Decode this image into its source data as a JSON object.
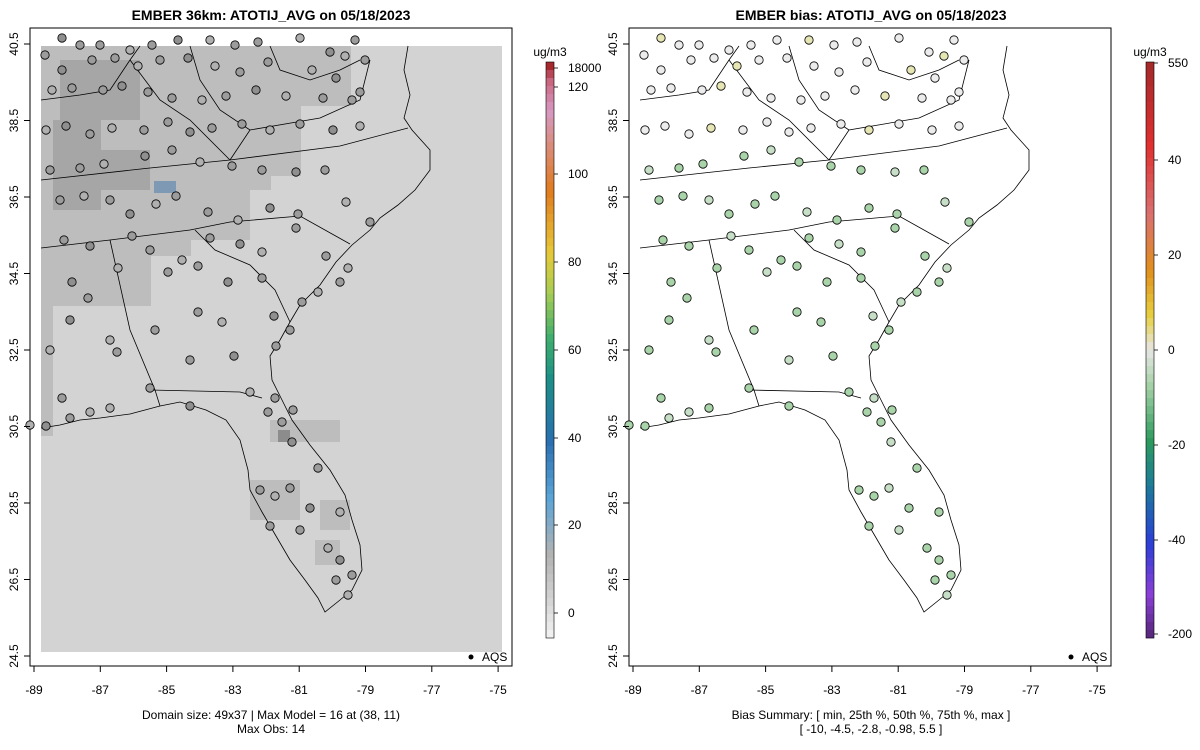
{
  "left_panel": {
    "title": "EMBER 36km: ATOTIJ_AVG on 05/18/2023",
    "legend_unit": "ug/m3",
    "legend_ticks": [
      "18000",
      "120",
      "100",
      "80",
      "60",
      "40",
      "20",
      "0"
    ],
    "footer_line1": "Domain size: 49x37 | Max Model = 16 at (38, 11)",
    "footer_line2": "Max Obs: 14",
    "points_label": "AQS"
  },
  "right_panel": {
    "title": "EMBER bias: ATOTIJ_AVG on 05/18/2023",
    "legend_unit": "ug/m3",
    "legend_ticks": [
      "550",
      "40",
      "20",
      "0",
      "-20",
      "-40",
      "-200"
    ],
    "footer_line1": "Bias Summary: [ min, 25th %, 50th %, 75th %, max ]",
    "footer_line2": "[ -10,   -4.5,   -2.8,   -0.98,   5.5 ]",
    "points_label": "AQS"
  },
  "axes": {
    "x_ticks": [
      "-89",
      "-87",
      "-85",
      "-83",
      "-81",
      "-79",
      "-77",
      "-75"
    ],
    "y_ticks": [
      "40.5",
      "38.5",
      "36.5",
      "34.5",
      "32.5",
      "30.5",
      "28.5",
      "26.5",
      "24.5"
    ]
  },
  "colors": {
    "grid_base": "#d3d3d3",
    "grid_mid": "#bdbdbd",
    "grid_dark": "#a6a6a6",
    "blue_cell": "#7d99b3",
    "bias_pos": "#e6e6b5",
    "bias_neg": "#a9d3a9"
  }
}
